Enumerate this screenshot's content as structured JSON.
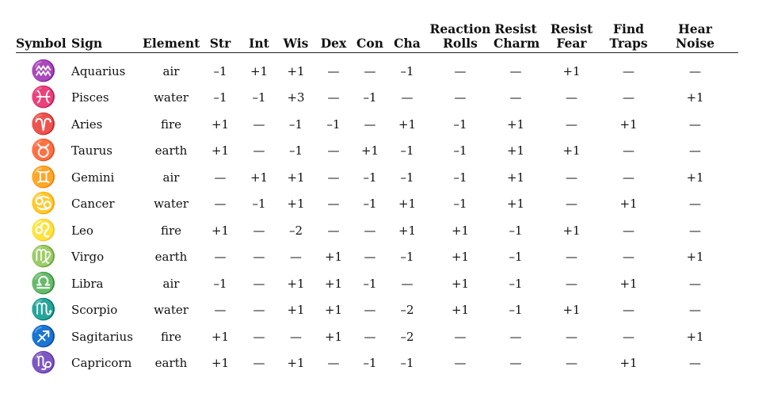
{
  "headers": {
    "symbol": "Symbol",
    "sign": "Sign",
    "element": "Element",
    "str": "Str",
    "int": "Int",
    "wis": "Wis",
    "dex": "Dex",
    "con": "Con",
    "cha": "Cha",
    "reaction_rolls": [
      "Reaction",
      "Rolls"
    ],
    "resist_charm": [
      "Resist",
      "Charm"
    ],
    "resist_fear": [
      "Resist",
      "Fear"
    ],
    "find_traps": [
      "Find",
      "Traps"
    ],
    "hear_noise": [
      "Hear",
      "Noise"
    ]
  },
  "rows": [
    {
      "symbol": "♒",
      "symbol_icon": "aquarius-icon",
      "sign": "Aquarius",
      "element": "air",
      "str": "–1",
      "int": "+1",
      "wis": "+1",
      "dex": "—",
      "con": "—",
      "cha": "–1",
      "reaction": "—",
      "charm": "—",
      "fear": "+1",
      "traps": "—",
      "noise": "—"
    },
    {
      "symbol": "♓",
      "symbol_icon": "pisces-icon",
      "sign": "Pisces",
      "element": "water",
      "str": "–1",
      "int": "–1",
      "wis": "+3",
      "dex": "—",
      "con": "–1",
      "cha": "—",
      "reaction": "—",
      "charm": "—",
      "fear": "—",
      "traps": "—",
      "noise": "+1"
    },
    {
      "symbol": "♈",
      "symbol_icon": "aries-icon",
      "sign": "Aries",
      "element": "fire",
      "str": "+1",
      "int": "—",
      "wis": "–1",
      "dex": "–1",
      "con": "—",
      "cha": "+1",
      "reaction": "–1",
      "charm": "+1",
      "fear": "—",
      "traps": "+1",
      "noise": "—"
    },
    {
      "symbol": "♉",
      "symbol_icon": "taurus-icon",
      "sign": "Taurus",
      "element": "earth",
      "str": "+1",
      "int": "—",
      "wis": "–1",
      "dex": "—",
      "con": "+1",
      "cha": "–1",
      "reaction": "–1",
      "charm": "+1",
      "fear": "+1",
      "traps": "—",
      "noise": "—"
    },
    {
      "symbol": "♊",
      "symbol_icon": "gemini-icon",
      "sign": "Gemini",
      "element": "air",
      "str": "—",
      "int": "+1",
      "wis": "+1",
      "dex": "—",
      "con": "–1",
      "cha": "–1",
      "reaction": "–1",
      "charm": "+1",
      "fear": "—",
      "traps": "—",
      "noise": "+1"
    },
    {
      "symbol": "♋",
      "symbol_icon": "cancer-icon",
      "sign": "Cancer",
      "element": "water",
      "str": "—",
      "int": "–1",
      "wis": "+1",
      "dex": "—",
      "con": "–1",
      "cha": "+1",
      "reaction": "–1",
      "charm": "+1",
      "fear": "—",
      "traps": "+1",
      "noise": "—"
    },
    {
      "symbol": "♌",
      "symbol_icon": "leo-icon",
      "sign": "Leo",
      "element": "fire",
      "str": "+1",
      "int": "—",
      "wis": "–2",
      "dex": "—",
      "con": "—",
      "cha": "+1",
      "reaction": "+1",
      "charm": "–1",
      "fear": "+1",
      "traps": "—",
      "noise": "—"
    },
    {
      "symbol": "♍",
      "symbol_icon": "virgo-icon",
      "sign": "Virgo",
      "element": "earth",
      "str": "—",
      "int": "—",
      "wis": "—",
      "dex": "+1",
      "con": "—",
      "cha": "–1",
      "reaction": "+1",
      "charm": "–1",
      "fear": "—",
      "traps": "—",
      "noise": "+1"
    },
    {
      "symbol": "♎",
      "symbol_icon": "libra-icon",
      "sign": "Libra",
      "element": "air",
      "str": "–1",
      "int": "—",
      "wis": "+1",
      "dex": "+1",
      "con": "–1",
      "cha": "—",
      "reaction": "+1",
      "charm": "–1",
      "fear": "—",
      "traps": "+1",
      "noise": "—"
    },
    {
      "symbol": "♏",
      "symbol_icon": "scorpio-icon",
      "sign": "Scorpio",
      "element": "water",
      "str": "—",
      "int": "—",
      "wis": "+1",
      "dex": "+1",
      "con": "—",
      "cha": "–2",
      "reaction": "+1",
      "charm": "–1",
      "fear": "+1",
      "traps": "—",
      "noise": "—"
    },
    {
      "symbol": "♐",
      "symbol_icon": "sagittarius-icon",
      "sign": "Sagitarius",
      "element": "fire",
      "str": "+1",
      "int": "—",
      "wis": "—",
      "dex": "+1",
      "con": "—",
      "cha": "–2",
      "reaction": "—",
      "charm": "—",
      "fear": "—",
      "traps": "—",
      "noise": "+1"
    },
    {
      "symbol": "♑",
      "symbol_icon": "capricorn-icon",
      "sign": "Capricorn",
      "element": "earth",
      "str": "+1",
      "int": "—",
      "wis": "+1",
      "dex": "—",
      "con": "–1",
      "cha": "–1",
      "reaction": "—",
      "charm": "—",
      "fear": "—",
      "traps": "+1",
      "noise": "—"
    }
  ]
}
